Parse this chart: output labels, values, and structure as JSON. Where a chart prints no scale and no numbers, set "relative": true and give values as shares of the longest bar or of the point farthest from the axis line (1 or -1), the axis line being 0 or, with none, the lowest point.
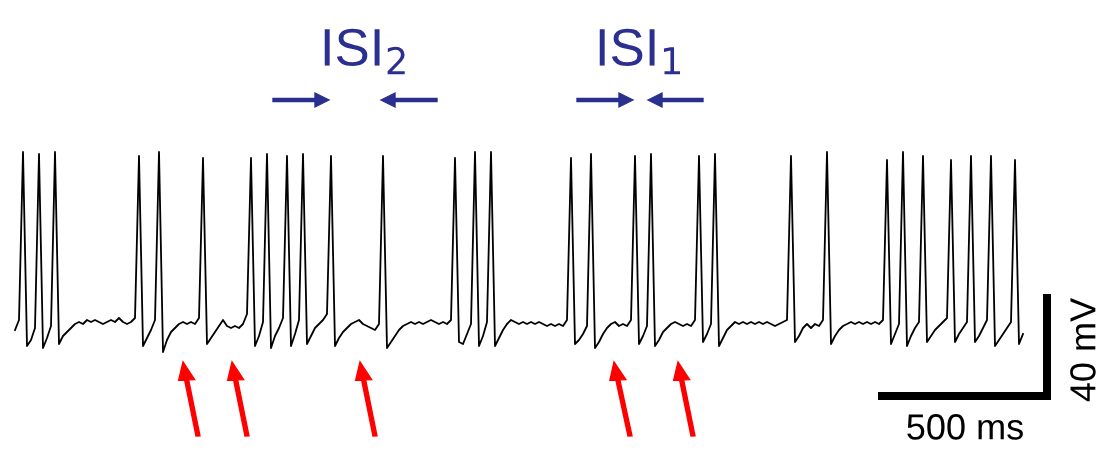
{
  "chart_data": {
    "type": "line",
    "relative": true,
    "annotations": [
      "ISI$_{2}$",
      "ISI$_{1}$",
      "500 ms",
      "40 mV"
    ],
    "categories": [
      null,
      null,
      null,
      null,
      null,
      null,
      null,
      null,
      null,
      null,
      null,
      null,
      null,
      null,
      null,
      null,
      null,
      null,
      null,
      null,
      null,
      null,
      null,
      null,
      null,
      null,
      null,
      null,
      null,
      null,
      null,
      null,
      null,
      null,
      null,
      null,
      null,
      null,
      null,
      null,
      null,
      null,
      null,
      null,
      null,
      null,
      null,
      null,
      null,
      null,
      null,
      null,
      null,
      null,
      null,
      null,
      null,
      null,
      null,
      null,
      null,
      null,
      null,
      null,
      null,
      null,
      null,
      null,
      null,
      null,
      null,
      null,
      null,
      null,
      null,
      null,
      null,
      null,
      null,
      null,
      null,
      null,
      null,
      null,
      null,
      null,
      null,
      null,
      null,
      null,
      null,
      null,
      null,
      null,
      null,
      null,
      null,
      null,
      null,
      null,
      null,
      null,
      null,
      null,
      null,
      null,
      null,
      null,
      null,
      null,
      null,
      null,
      null,
      null,
      null,
      null,
      null,
      null,
      null,
      null,
      null,
      null,
      null,
      null,
      null,
      null,
      null,
      null,
      null,
      null,
      null,
      null,
      null,
      null,
      null,
      null,
      null,
      null,
      null,
      null,
      null,
      null,
      null,
      null,
      null,
      null,
      null,
      null,
      null,
      null,
      null,
      null,
      null,
      null,
      null,
      null,
      null,
      null,
      null,
      null,
      null,
      null,
      null,
      null,
      null,
      null,
      null,
      null,
      null,
      null,
      null,
      null,
      null,
      null,
      null,
      null,
      null,
      null,
      null,
      null,
      null,
      null,
      null,
      null,
      null,
      null,
      null,
      null,
      null,
      null,
      null,
      null,
      null,
      null,
      null,
      null,
      null,
      null,
      null,
      null,
      null,
      null,
      null,
      null,
      null,
      null,
      null,
      null,
      null,
      null,
      null,
      null,
      null,
      null,
      null,
      null,
      null,
      null,
      null,
      null,
      null,
      null,
      null,
      null,
      null,
      null,
      null,
      null,
      null,
      null,
      null,
      null,
      null,
      null,
      null,
      null,
      null,
      null,
      null,
      null,
      null,
      null,
      null,
      null,
      null,
      null,
      null,
      null,
      null,
      null,
      null,
      null,
      null
    ],
    "series": [
      {
        "color": "#000000",
        "values": [
          0.11,
          0.16,
          1.0,
          0.03,
          0.06,
          0.12,
          0.99,
          0.02,
          0.07,
          0.13,
          1.0,
          0.04,
          0.08,
          0.1,
          0.12,
          0.14,
          0.15,
          0.14,
          0.16,
          0.15,
          0.16,
          0.15,
          0.14,
          0.15,
          0.16,
          0.15,
          0.17,
          0.15,
          0.14,
          0.15,
          0.17,
          0.98,
          0.03,
          0.07,
          0.11,
          0.16,
          1.0,
          0.0,
          0.06,
          0.1,
          0.12,
          0.14,
          0.15,
          0.14,
          0.15,
          0.14,
          0.17,
          0.97,
          0.04,
          0.07,
          0.1,
          0.13,
          0.16,
          0.13,
          0.12,
          0.13,
          0.12,
          0.14,
          0.19,
          0.97,
          0.03,
          0.08,
          0.15,
          0.99,
          0.02,
          0.08,
          0.12,
          0.17,
          0.98,
          0.03,
          0.09,
          0.16,
          0.99,
          0.04,
          0.08,
          0.12,
          0.14,
          0.16,
          0.19,
          0.98,
          0.03,
          0.07,
          0.1,
          0.12,
          0.14,
          0.15,
          0.16,
          0.14,
          0.13,
          0.12,
          0.11,
          0.14,
          0.98,
          0.02,
          0.05,
          0.08,
          0.11,
          0.13,
          0.14,
          0.15,
          0.14,
          0.15,
          0.14,
          0.15,
          0.16,
          0.15,
          0.14,
          0.15,
          0.14,
          0.16,
          0.97,
          0.05,
          0.04,
          0.09,
          0.14,
          1.0,
          0.03,
          0.08,
          0.15,
          1.0,
          0.03,
          0.07,
          0.11,
          0.14,
          0.16,
          0.15,
          0.14,
          0.15,
          0.14,
          0.15,
          0.14,
          0.15,
          0.14,
          0.13,
          0.14,
          0.13,
          0.14,
          0.13,
          0.16,
          0.97,
          0.04,
          0.06,
          0.09,
          0.13,
          0.99,
          0.02,
          0.05,
          0.09,
          0.12,
          0.14,
          0.15,
          0.13,
          0.14,
          0.13,
          0.16,
          0.98,
          0.04,
          0.08,
          0.13,
          0.99,
          0.03,
          0.06,
          0.1,
          0.12,
          0.14,
          0.15,
          0.14,
          0.13,
          0.14,
          0.13,
          0.16,
          0.98,
          0.05,
          0.09,
          0.14,
          0.99,
          0.03,
          0.07,
          0.11,
          0.13,
          0.15,
          0.14,
          0.15,
          0.14,
          0.15,
          0.14,
          0.15,
          0.14,
          0.15,
          0.14,
          0.13,
          0.14,
          0.15,
          0.16,
          0.98,
          0.05,
          0.08,
          0.12,
          0.14,
          0.12,
          0.14,
          0.13,
          0.16,
          1.0,
          0.04,
          0.08,
          0.11,
          0.13,
          0.14,
          0.15,
          0.14,
          0.15,
          0.14,
          0.15,
          0.14,
          0.15,
          0.14,
          0.16,
          0.96,
          0.04,
          0.09,
          0.14,
          1.0,
          0.03,
          0.08,
          0.12,
          0.15,
          0.98,
          0.05,
          0.08,
          0.11,
          0.13,
          0.15,
          0.17,
          0.96,
          0.05,
          0.09,
          0.12,
          0.15,
          0.98,
          0.05,
          0.08,
          0.12,
          0.16,
          0.98,
          0.03,
          0.06,
          0.09,
          0.12,
          0.15,
          0.96,
          0.04,
          0.09
        ]
      }
    ]
  }
}
